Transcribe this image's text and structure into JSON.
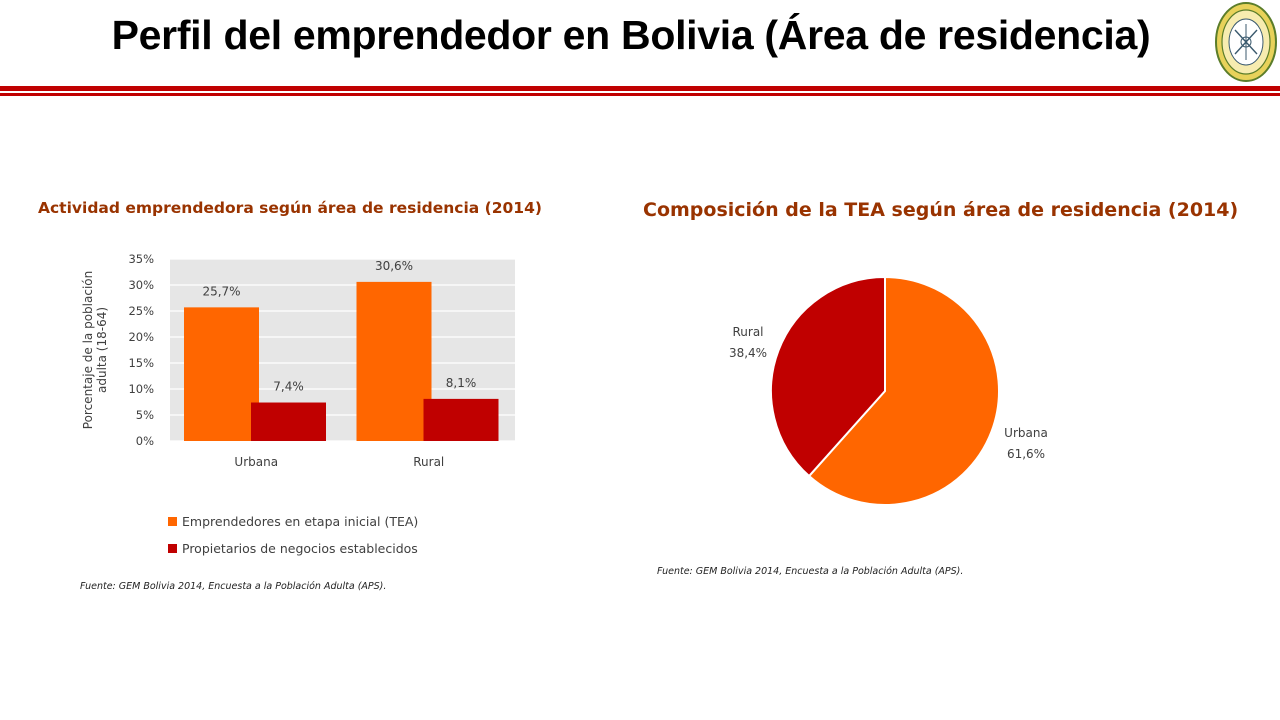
{
  "slide": {
    "title": "Perfil del emprendedor en Bolivia (Área de residencia)"
  },
  "colors": {
    "accent_rule": "#c00000",
    "title_text": "#993300",
    "orange": "#ff6600",
    "red": "#c00000"
  },
  "chart_data": [
    {
      "type": "bar",
      "title": "Actividad emprendedora según área de residencia (2014)",
      "ylabel": "Porcentaje de la población adulta (18-64)",
      "xlabel": "",
      "categories": [
        "Urbana",
        "Rural"
      ],
      "ylim": [
        0,
        35
      ],
      "yticks": [
        "0%",
        "5%",
        "10%",
        "15%",
        "20%",
        "25%",
        "30%",
        "35%"
      ],
      "grid": true,
      "legend_position": "bottom",
      "series": [
        {
          "name": "Emprendedores en etapa inicial (TEA)",
          "values": [
            25.7,
            30.6
          ],
          "labels": [
            "25,7%",
            "30,6%"
          ],
          "color": "#ff6600"
        },
        {
          "name": "Propietarios de negocios establecidos",
          "values": [
            7.4,
            8.1
          ],
          "labels": [
            "7,4%",
            "8,1%"
          ],
          "color": "#c00000"
        }
      ],
      "source": "Fuente: GEM Bolivia 2014, Encuesta a la Población Adulta (APS)."
    },
    {
      "type": "pie",
      "title": "Composición de la TEA según área de residencia (2014)",
      "slices": [
        {
          "name": "Urbana",
          "value": 61.6,
          "label": "61,6%",
          "color": "#ff6600"
        },
        {
          "name": "Rural",
          "value": 38.4,
          "label": "38,4%",
          "color": "#c00000"
        }
      ],
      "source": "Fuente: GEM Bolivia 2014, Encuesta a la Población Adulta (APS)."
    }
  ]
}
